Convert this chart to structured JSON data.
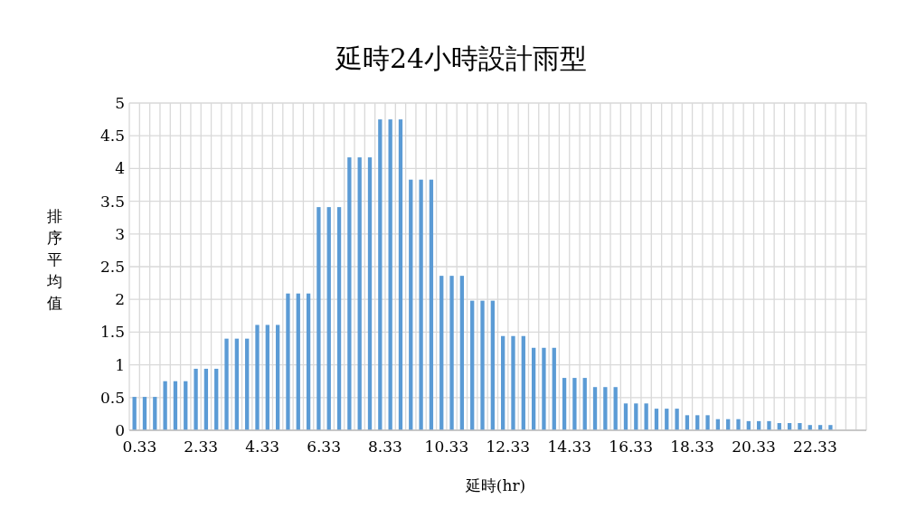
{
  "chart_data": {
    "type": "bar",
    "title": "延時24小時設計雨型",
    "xlabel": "延時(hr)",
    "ylabel": "排序平均值",
    "categories": [
      "0.33",
      null,
      null,
      null,
      null,
      null,
      "2.33",
      null,
      null,
      null,
      null,
      null,
      "4.33",
      null,
      null,
      null,
      null,
      null,
      "6.33",
      null,
      null,
      null,
      null,
      null,
      "8.33",
      null,
      null,
      null,
      null,
      null,
      "10.33",
      null,
      null,
      null,
      null,
      null,
      "12.33",
      null,
      null,
      null,
      null,
      null,
      "14.33",
      null,
      null,
      null,
      null,
      null,
      "16.33",
      null,
      null,
      null,
      null,
      null,
      "18.33",
      null,
      null,
      null,
      null,
      null,
      "20.33",
      null,
      null,
      null,
      null,
      null,
      "22.33",
      null,
      null,
      null,
      null,
      null
    ],
    "values": [
      0.51,
      0.51,
      0.51,
      0.75,
      0.75,
      0.75,
      0.94,
      0.94,
      0.94,
      1.4,
      1.4,
      1.4,
      1.61,
      1.61,
      1.61,
      2.09,
      2.09,
      2.09,
      3.41,
      3.41,
      3.41,
      4.17,
      4.17,
      4.17,
      4.75,
      4.75,
      4.75,
      3.83,
      3.83,
      3.83,
      2.36,
      2.36,
      2.36,
      1.98,
      1.98,
      1.98,
      1.44,
      1.44,
      1.44,
      1.26,
      1.26,
      1.26,
      0.8,
      0.8,
      0.8,
      0.66,
      0.66,
      0.66,
      0.41,
      0.41,
      0.41,
      0.33,
      0.33,
      0.33,
      0.23,
      0.23,
      0.23,
      0.17,
      0.17,
      0.17,
      0.14,
      0.14,
      0.14,
      0.11,
      0.11,
      0.11,
      0.08,
      0.08,
      0.08,
      null,
      null,
      null
    ],
    "color": "#5b9bd5",
    "ylim": [
      0,
      5
    ],
    "yticks": [
      0,
      0.5,
      1,
      1.5,
      2,
      2.5,
      3,
      3.5,
      4,
      4.5,
      5
    ],
    "grid": true
  }
}
